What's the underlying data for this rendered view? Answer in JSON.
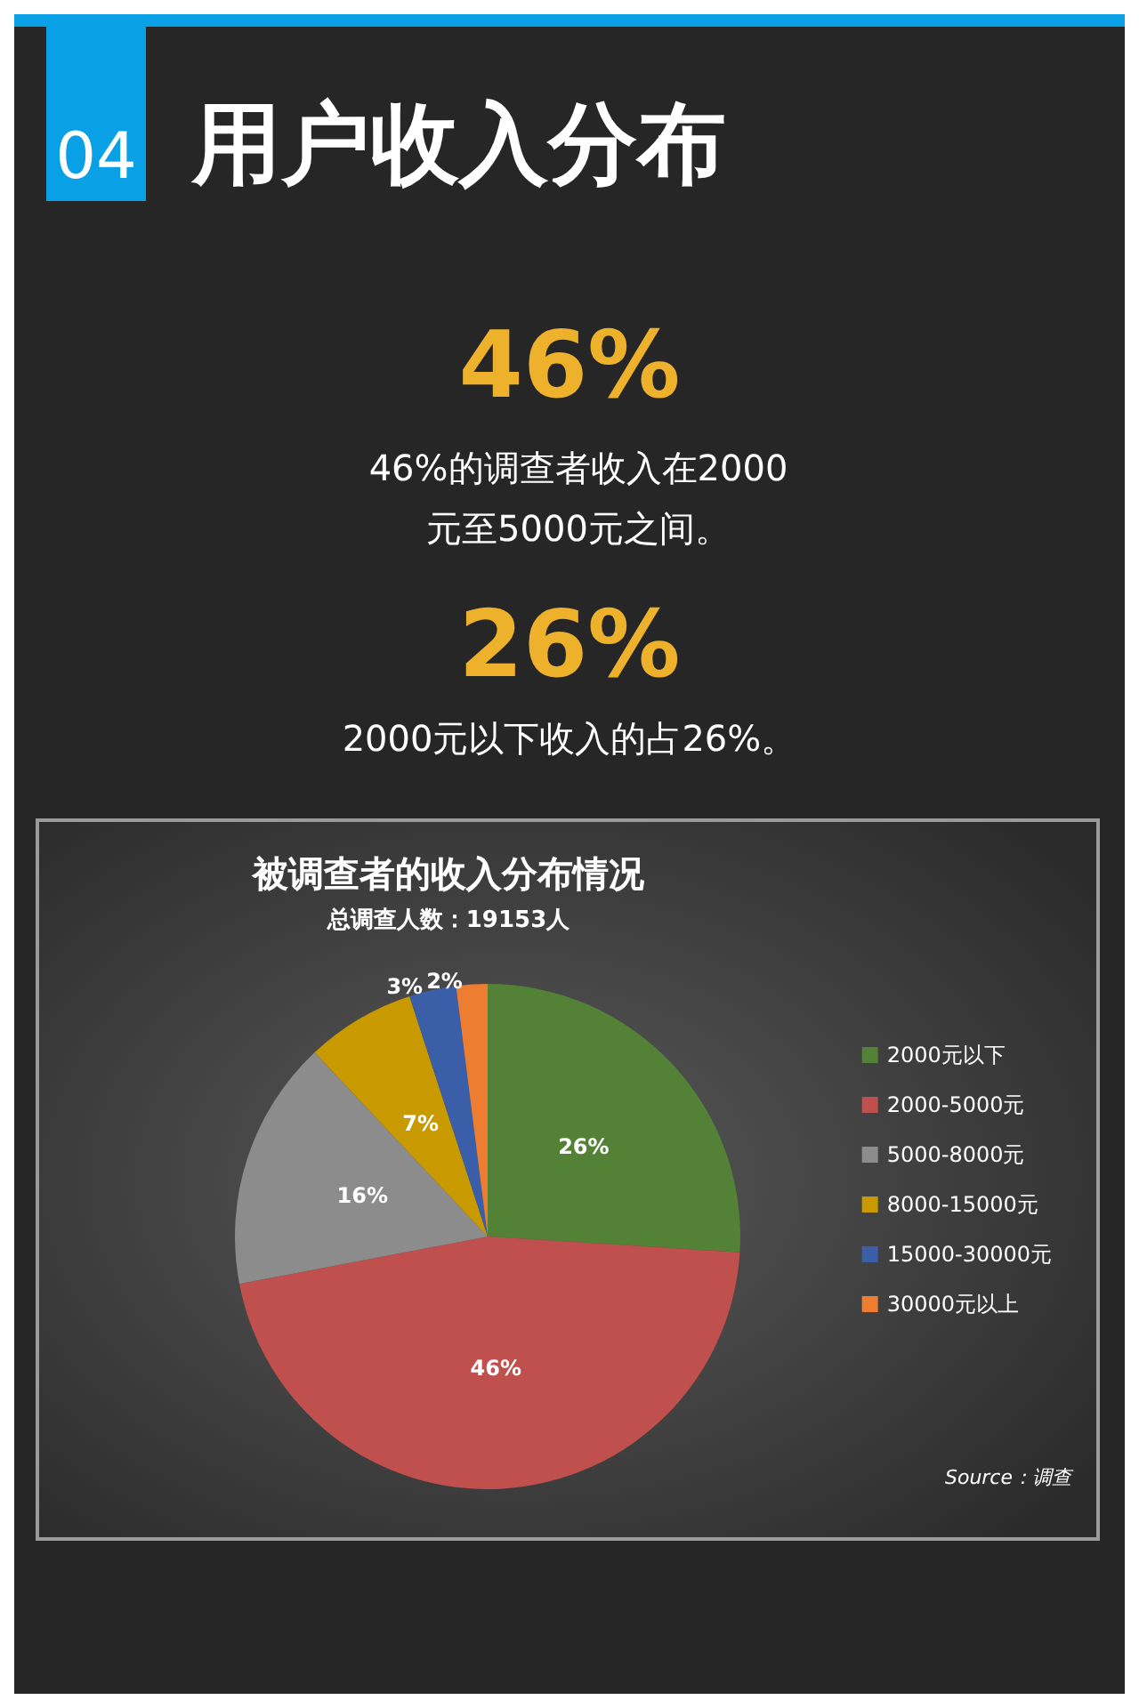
{
  "chart_data": {
    "type": "pie",
    "title": "被调查者的收入分布情况",
    "subtitle": "总调查人数：19153人",
    "categories": [
      "2000元以下",
      "2000-5000元",
      "5000-8000元",
      "8000-15000元",
      "15000-30000元",
      "30000元以上"
    ],
    "values": [
      26,
      46,
      16,
      7,
      3,
      2
    ],
    "colors": [
      "#538135",
      "#c0504d",
      "#8c8c8c",
      "#c99a00",
      "#3a5ea8",
      "#ed7d31"
    ],
    "value_labels": [
      "26%",
      "46%",
      "16%",
      "7%",
      "3%",
      "2%"
    ],
    "legend": "right",
    "annotations": [
      "04",
      "用户收入分布",
      "46%",
      "46%的调查者收入在2000元至5000元之间。",
      "26%",
      "2000元以下收入的占26%。",
      "Source：调查"
    ]
  }
}
